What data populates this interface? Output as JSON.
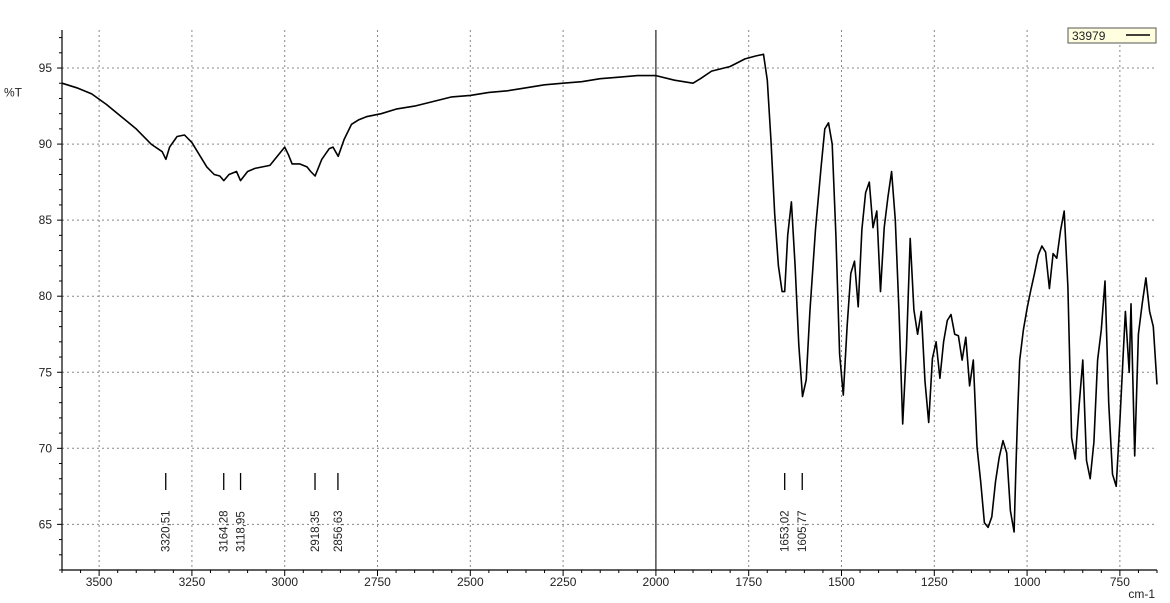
{
  "chart_data": {
    "type": "line",
    "x_axis": {
      "unit": "cm-1",
      "min": 3600,
      "max": 650,
      "reversed": true,
      "ticks": [
        3500,
        3250,
        3000,
        2750,
        2500,
        2250,
        2000,
        1750,
        1500,
        1250,
        1000,
        750
      ]
    },
    "y_axis": {
      "label": "%T",
      "min": 62,
      "max": 97.5,
      "ticks": [
        65,
        70,
        75,
        80,
        85,
        90,
        95
      ]
    },
    "grid": true,
    "legend": {
      "position": "top-right",
      "entries": [
        "33979"
      ]
    },
    "marker_line_x": 2000,
    "series": [
      {
        "name": "33979",
        "x": [
          3600,
          3560,
          3520,
          3480,
          3440,
          3400,
          3360,
          3330,
          3320,
          3310,
          3290,
          3270,
          3250,
          3230,
          3210,
          3190,
          3175,
          3164,
          3150,
          3130,
          3119,
          3100,
          3080,
          3060,
          3040,
          3020,
          3000,
          2990,
          2980,
          2960,
          2940,
          2930,
          2918,
          2900,
          2880,
          2870,
          2856,
          2840,
          2820,
          2800,
          2780,
          2760,
          2740,
          2700,
          2650,
          2600,
          2550,
          2500,
          2450,
          2400,
          2350,
          2300,
          2250,
          2200,
          2150,
          2100,
          2050,
          2000,
          1950,
          1900,
          1880,
          1850,
          1800,
          1760,
          1730,
          1710,
          1700,
          1690,
          1680,
          1670,
          1660,
          1653,
          1645,
          1635,
          1625,
          1615,
          1605,
          1595,
          1585,
          1570,
          1555,
          1545,
          1535,
          1525,
          1515,
          1505,
          1495,
          1485,
          1475,
          1465,
          1455,
          1445,
          1435,
          1425,
          1415,
          1405,
          1395,
          1385,
          1375,
          1365,
          1355,
          1345,
          1335,
          1325,
          1315,
          1305,
          1295,
          1285,
          1275,
          1265,
          1255,
          1245,
          1235,
          1225,
          1215,
          1205,
          1195,
          1185,
          1175,
          1165,
          1155,
          1145,
          1135,
          1125,
          1115,
          1105,
          1095,
          1085,
          1075,
          1065,
          1055,
          1045,
          1035,
          1030,
          1025,
          1020,
          1010,
          1000,
          990,
          980,
          970,
          960,
          950,
          940,
          930,
          920,
          910,
          900,
          890,
          880,
          870,
          860,
          850,
          840,
          830,
          820,
          810,
          800,
          790,
          780,
          770,
          760,
          750,
          740,
          735,
          730,
          725,
          720,
          710,
          700,
          690,
          680,
          670,
          660,
          650
        ],
        "y": [
          94.0,
          93.7,
          93.3,
          92.6,
          91.8,
          91.0,
          90.0,
          89.5,
          89.0,
          89.8,
          90.5,
          90.6,
          90.1,
          89.3,
          88.5,
          88.0,
          87.9,
          87.6,
          88.0,
          88.2,
          87.6,
          88.2,
          88.4,
          88.5,
          88.6,
          89.2,
          89.8,
          89.3,
          88.7,
          88.7,
          88.5,
          88.2,
          87.9,
          89.0,
          89.7,
          89.8,
          89.2,
          90.3,
          91.3,
          91.6,
          91.8,
          91.9,
          92.0,
          92.3,
          92.5,
          92.8,
          93.1,
          93.2,
          93.4,
          93.5,
          93.7,
          93.9,
          94.0,
          94.1,
          94.3,
          94.4,
          94.5,
          94.5,
          94.2,
          94.0,
          94.3,
          94.8,
          95.1,
          95.6,
          95.8,
          95.9,
          94.2,
          90.2,
          85.4,
          82.0,
          80.3,
          80.3,
          84.0,
          86.2,
          82.0,
          76.8,
          73.4,
          74.5,
          79.0,
          84.4,
          88.5,
          91.0,
          91.4,
          90.0,
          84.0,
          76.2,
          73.5,
          78.0,
          81.5,
          82.3,
          79.3,
          84.4,
          86.8,
          87.5,
          84.5,
          85.6,
          80.3,
          84.5,
          86.5,
          88.2,
          85.0,
          79.0,
          71.6,
          76.5,
          83.8,
          79.1,
          77.5,
          79.0,
          74.4,
          71.7,
          75.9,
          77.0,
          74.6,
          77.0,
          78.4,
          78.8,
          77.5,
          77.4,
          75.8,
          77.3,
          74.1,
          75.8,
          70.1,
          67.8,
          65.1,
          64.8,
          65.5,
          67.8,
          69.4,
          70.5,
          69.7,
          65.9,
          64.5,
          68.7,
          72.6,
          75.8,
          77.8,
          79.2,
          80.4,
          81.5,
          82.7,
          83.3,
          82.9,
          80.5,
          82.8,
          82.5,
          84.3,
          85.6,
          80.6,
          70.7,
          69.3,
          72.8,
          75.8,
          69.2,
          68.0,
          70.4,
          75.8,
          77.8,
          81.0,
          73.0,
          68.3,
          67.5,
          71.8,
          76.7,
          79.0,
          77.0,
          75.0,
          79.5,
          69.5,
          77.5,
          79.5,
          81.2,
          79.0,
          78.0,
          74.2
        ]
      }
    ],
    "peak_labels": [
      {
        "x": 3320.51,
        "text": "3320,51"
      },
      {
        "x": 3164.28,
        "text": "3164,28"
      },
      {
        "x": 3118.95,
        "text": "3118,95"
      },
      {
        "x": 2918.35,
        "text": "2918,35"
      },
      {
        "x": 2856.63,
        "text": "2856,63"
      },
      {
        "x": 1653.02,
        "text": "1653,02"
      },
      {
        "x": 1605.77,
        "text": "1605,77"
      }
    ]
  }
}
